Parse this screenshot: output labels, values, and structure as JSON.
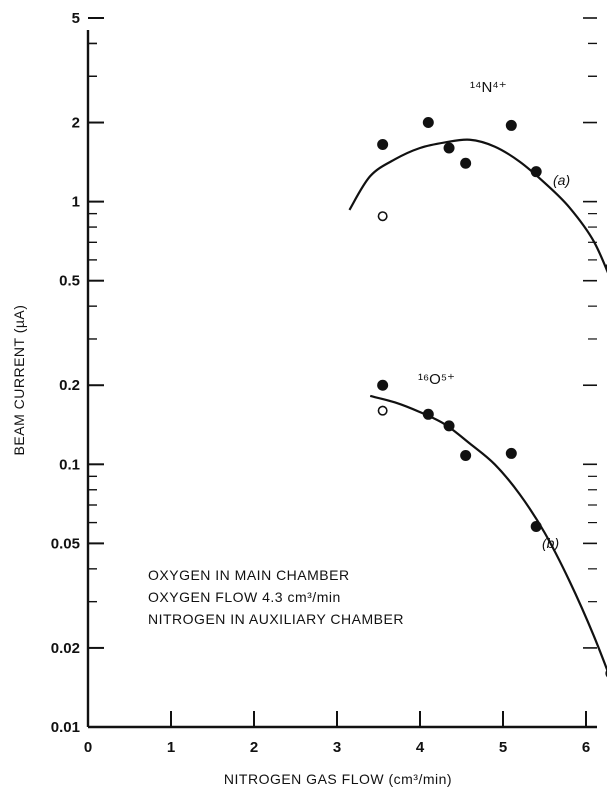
{
  "chart_data": {
    "type": "scatter",
    "title": "",
    "xlabel": "NITROGEN GAS FLOW (cm³/min)",
    "ylabel": "BEAM CURRENT (µA)",
    "xlim": [
      0,
      6.5
    ],
    "ylim": [
      0.01,
      5
    ],
    "y_scale": "log",
    "grid": false,
    "x_ticks": [
      "0",
      "1",
      "2",
      "3",
      "4",
      "5",
      "6"
    ],
    "y_ticks": [
      "0.01",
      "0.02",
      "0.05",
      "0.1",
      "0.2",
      "0.5",
      "1",
      "2",
      "5"
    ],
    "annotations": [
      "OXYGEN IN MAIN CHAMBER",
      "OXYGEN FLOW 4.3 cm³/min",
      "NITROGEN IN AUXILIARY CHAMBER"
    ],
    "series": [
      {
        "name": "¹⁴N⁴⁺",
        "curve_label": "(a)",
        "points": [
          {
            "x": 3.55,
            "y": 1.65
          },
          {
            "x": 4.1,
            "y": 2.0
          },
          {
            "x": 4.35,
            "y": 1.6
          },
          {
            "x": 4.55,
            "y": 1.4
          },
          {
            "x": 5.1,
            "y": 1.95
          },
          {
            "x": 5.4,
            "y": 1.3
          },
          {
            "x": 6.3,
            "y": 0.56
          }
        ],
        "open_points": [
          {
            "x": 3.55,
            "y": 0.88
          }
        ],
        "fit_curve": [
          {
            "x": 3.15,
            "y": 0.93
          },
          {
            "x": 3.4,
            "y": 1.25
          },
          {
            "x": 3.7,
            "y": 1.45
          },
          {
            "x": 4.0,
            "y": 1.6
          },
          {
            "x": 4.3,
            "y": 1.68
          },
          {
            "x": 4.6,
            "y": 1.72
          },
          {
            "x": 4.9,
            "y": 1.62
          },
          {
            "x": 5.2,
            "y": 1.42
          },
          {
            "x": 5.5,
            "y": 1.18
          },
          {
            "x": 5.8,
            "y": 0.95
          },
          {
            "x": 6.1,
            "y": 0.7
          },
          {
            "x": 6.35,
            "y": 0.46
          }
        ]
      },
      {
        "name": "¹⁶O⁵⁺",
        "curve_label": "(b)",
        "points": [
          {
            "x": 3.55,
            "y": 0.2
          },
          {
            "x": 4.1,
            "y": 0.155
          },
          {
            "x": 4.35,
            "y": 0.14
          },
          {
            "x": 4.55,
            "y": 0.108
          },
          {
            "x": 5.1,
            "y": 0.11
          },
          {
            "x": 5.4,
            "y": 0.058
          },
          {
            "x": 6.3,
            "y": 0.016
          }
        ],
        "open_points": [
          {
            "x": 3.55,
            "y": 0.16
          }
        ],
        "fit_curve": [
          {
            "x": 3.4,
            "y": 0.182
          },
          {
            "x": 3.7,
            "y": 0.172
          },
          {
            "x": 4.0,
            "y": 0.158
          },
          {
            "x": 4.3,
            "y": 0.142
          },
          {
            "x": 4.6,
            "y": 0.12
          },
          {
            "x": 4.9,
            "y": 0.1
          },
          {
            "x": 5.2,
            "y": 0.077
          },
          {
            "x": 5.5,
            "y": 0.055
          },
          {
            "x": 5.8,
            "y": 0.036
          },
          {
            "x": 6.1,
            "y": 0.022
          },
          {
            "x": 6.4,
            "y": 0.0125
          }
        ]
      }
    ]
  }
}
